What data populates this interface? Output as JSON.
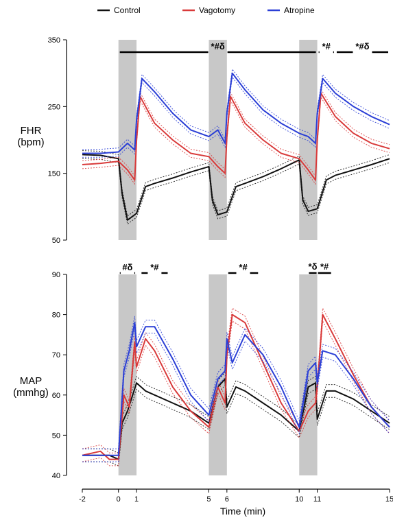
{
  "legend": [
    {
      "label": "Control",
      "color": "#111111"
    },
    {
      "label": "Vagotomy",
      "color": "#d93a3a"
    },
    {
      "label": "Atropine",
      "color": "#2b3fd6"
    }
  ],
  "x_axis": {
    "label": "Time (min)",
    "ticks": [
      -2,
      0,
      1,
      5,
      6,
      10,
      11,
      15
    ],
    "tick_labels": [
      "-2",
      "0",
      "1",
      "5",
      "6",
      "10",
      "11",
      "15"
    ],
    "range": [
      -2,
      15
    ]
  },
  "shaded_intervals": [
    [
      0,
      1
    ],
    [
      5,
      6
    ],
    [
      10,
      11
    ]
  ],
  "chart_data": [
    {
      "type": "line",
      "ylabel_lines": [
        "FHR",
        "(bpm)"
      ],
      "ylim": [
        50,
        350
      ],
      "yticks": [
        50,
        150,
        250,
        350
      ],
      "ytick_labels": [
        "50",
        "150",
        "250",
        "350"
      ],
      "significance": [
        {
          "label": "*#δ",
          "x_start": 0,
          "x_end": 11
        },
        {
          "label": "*#",
          "x_start": 11,
          "x_end": 12
        },
        {
          "label": "*#δ",
          "x_start": 12,
          "x_end": 15
        }
      ],
      "series": [
        {
          "name": "Control",
          "color": "#111111",
          "x": [
            -2,
            -1,
            0,
            0.2,
            0.5,
            1,
            1.5,
            2,
            3,
            4,
            5,
            5.2,
            5.5,
            6,
            6.5,
            7,
            8,
            9,
            10,
            10.2,
            10.5,
            11,
            11.5,
            12,
            13,
            14,
            15
          ],
          "y": [
            178,
            177,
            172,
            120,
            80,
            90,
            130,
            135,
            143,
            152,
            160,
            110,
            88,
            92,
            130,
            135,
            145,
            157,
            170,
            110,
            93,
            97,
            140,
            147,
            155,
            163,
            172
          ]
        },
        {
          "name": "Vagotomy",
          "color": "#d93a3a",
          "x": [
            -2,
            -1,
            0,
            0.5,
            0.9,
            1,
            1.2,
            2,
            3,
            4,
            5,
            5.5,
            5.9,
            6,
            6.2,
            7,
            8,
            9,
            10,
            10.5,
            10.9,
            11,
            11.2,
            12,
            13,
            14,
            15
          ],
          "y": [
            163,
            165,
            168,
            155,
            140,
            200,
            265,
            225,
            200,
            180,
            175,
            160,
            150,
            205,
            265,
            225,
            200,
            180,
            172,
            155,
            140,
            200,
            270,
            235,
            210,
            195,
            187
          ]
        },
        {
          "name": "Atropine",
          "color": "#2b3fd6",
          "x": [
            -2,
            -1,
            0,
            0.5,
            0.9,
            1,
            1.3,
            2,
            3,
            4,
            5,
            5.5,
            5.9,
            6,
            6.3,
            7,
            8,
            9,
            10,
            10.5,
            10.9,
            11,
            11.3,
            12,
            13,
            14,
            15
          ],
          "y": [
            180,
            180,
            182,
            195,
            185,
            230,
            292,
            272,
            240,
            215,
            205,
            215,
            195,
            240,
            300,
            275,
            245,
            225,
            210,
            205,
            195,
            240,
            292,
            270,
            250,
            235,
            223
          ]
        }
      ]
    },
    {
      "type": "line",
      "ylabel_lines": [
        "MAP",
        "(mmhg)"
      ],
      "ylim": [
        40,
        90
      ],
      "yticks": [
        40,
        50,
        60,
        70,
        80,
        90
      ],
      "ytick_labels": [
        "40",
        "50",
        "60",
        "70",
        "80",
        "90"
      ],
      "significance": [
        {
          "label": "#δ",
          "x_start": 0,
          "x_end": 1
        },
        {
          "label": "*#",
          "x_start": 1.2,
          "x_end": 2.8
        },
        {
          "label": "*#",
          "x_start": 6,
          "x_end": 7.8
        },
        {
          "label": "*δ",
          "x_start": 10.5,
          "x_end": 11
        },
        {
          "label": "*#",
          "x_start": 11,
          "x_end": 11.8
        }
      ],
      "series": [
        {
          "name": "Control",
          "color": "#111111",
          "x": [
            -2,
            -1,
            -0.5,
            0,
            0.2,
            0.5,
            1,
            1.5,
            2,
            3,
            4,
            5,
            5.5,
            5.9,
            6,
            6.5,
            7,
            8,
            9,
            10,
            10.5,
            10.9,
            11,
            11.5,
            12,
            13,
            14,
            15
          ],
          "y": [
            45,
            45,
            45,
            44,
            53,
            56,
            63,
            61,
            60,
            58,
            56,
            53,
            62,
            64,
            57,
            62,
            61,
            58,
            55,
            51,
            62,
            63,
            54,
            61,
            61,
            59,
            56,
            53
          ]
        },
        {
          "name": "Vagotomy",
          "color": "#d93a3a",
          "x": [
            -2,
            -1,
            -0.5,
            0,
            0.3,
            0.6,
            0.9,
            1,
            1.5,
            2,
            3,
            4,
            5,
            5.5,
            5.9,
            6,
            6.3,
            7,
            8,
            9,
            10,
            10.5,
            10.9,
            11,
            11.3,
            12,
            13,
            14,
            15
          ],
          "y": [
            45,
            46,
            44,
            44,
            60,
            57,
            73,
            67,
            74,
            71,
            62,
            56,
            52,
            62,
            58,
            70,
            80,
            78,
            68,
            58,
            51,
            56,
            58,
            62,
            80,
            74,
            65,
            57,
            52
          ]
        },
        {
          "name": "Atropine",
          "color": "#2b3fd6",
          "x": [
            -2,
            -1,
            -0.5,
            0,
            0.3,
            0.6,
            0.9,
            1,
            1.5,
            2,
            3,
            4,
            5,
            5.5,
            5.9,
            6,
            6.3,
            7,
            8,
            9,
            10,
            10.5,
            10.9,
            11,
            11.3,
            12,
            13,
            14,
            15
          ],
          "y": [
            45,
            45,
            45,
            45,
            66,
            71,
            78,
            72,
            77,
            77,
            69,
            60,
            55,
            64,
            66,
            74,
            68,
            75,
            70,
            62,
            52,
            66,
            68,
            63,
            71,
            70,
            64,
            57,
            52
          ]
        }
      ]
    }
  ]
}
